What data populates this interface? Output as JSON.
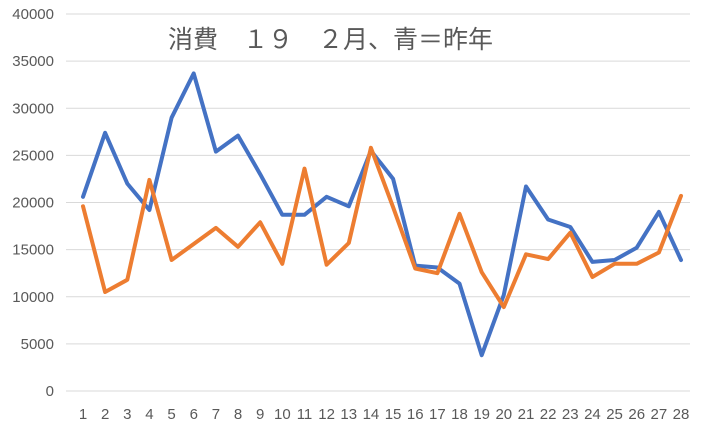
{
  "chart_data": {
    "type": "line",
    "title": "消費　１９　２月、青＝昨年",
    "xlabel": "",
    "ylabel": "",
    "ylim": [
      0,
      40000
    ],
    "yticks": [
      0,
      5000,
      10000,
      15000,
      20000,
      25000,
      30000,
      35000,
      40000
    ],
    "categories": [
      "1",
      "2",
      "3",
      "4",
      "5",
      "6",
      "7",
      "8",
      "9",
      "10",
      "11",
      "12",
      "13",
      "14",
      "15",
      "16",
      "17",
      "18",
      "19",
      "20",
      "21",
      "22",
      "23",
      "24",
      "25",
      "26",
      "27",
      "28"
    ],
    "grid": true,
    "legend": "none",
    "series": [
      {
        "color": "#4472c4",
        "values": [
          20600,
          27400,
          22000,
          19200,
          29000,
          33700,
          25400,
          27100,
          23000,
          18700,
          18700,
          20600,
          19600,
          25500,
          22500,
          13300,
          13100,
          11400,
          3800,
          10200,
          21700,
          18200,
          17400,
          13700,
          13900,
          15200,
          19000,
          13900
        ]
      },
      {
        "color": "#ed7d31",
        "values": [
          19600,
          10500,
          11800,
          22400,
          13900,
          15600,
          17300,
          15300,
          17900,
          13500,
          23600,
          13400,
          15700,
          25800,
          19500,
          13000,
          12500,
          18800,
          12600,
          8900,
          14500,
          14000,
          16800,
          12100,
          13500,
          13500,
          14700,
          20700
        ]
      }
    ]
  }
}
